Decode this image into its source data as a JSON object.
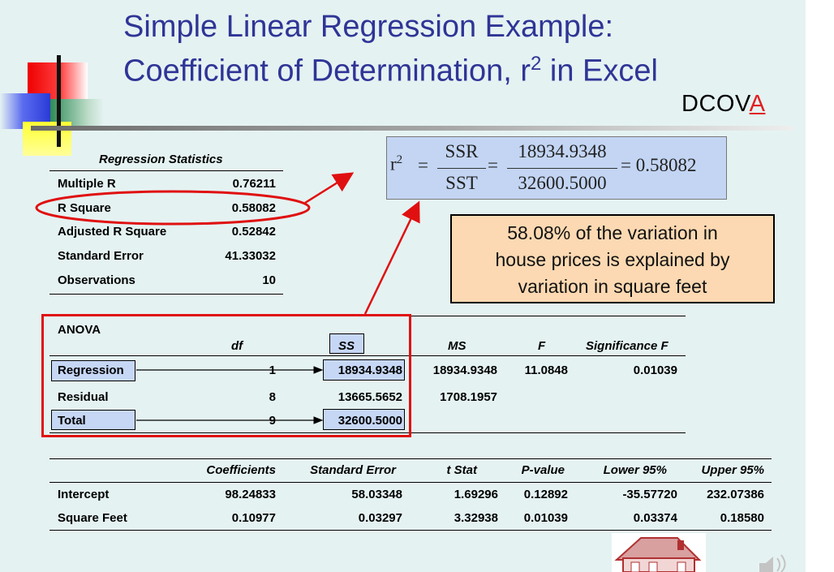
{
  "title": {
    "line1": "Simple Linear Regression Example:",
    "line2_a": "Coefficient of Determination, r",
    "line2_sup": "2",
    "line2_b": " in Excel"
  },
  "badge": {
    "prefix": "DCOV",
    "highlight": "A"
  },
  "colors": {
    "title": "#2f3596",
    "highlight_box": "#c6d7f5",
    "note_box": "#fcd9b2",
    "red": "#e01010"
  },
  "regression_statistics": {
    "header": "Regression Statistics",
    "rows": [
      {
        "label": "Multiple R",
        "value": "0.76211"
      },
      {
        "label": "R Square",
        "value": "0.58082"
      },
      {
        "label": "Adjusted R Square",
        "value": "0.52842"
      },
      {
        "label": "Standard Error",
        "value": "41.33032"
      },
      {
        "label": "Observations",
        "value": "10"
      }
    ]
  },
  "formula": {
    "lhs": "r",
    "lhs_sup": "2",
    "eq": "=",
    "num1": "SSR",
    "den1": "SST",
    "num2": "18934.9348",
    "den2": "32600.5000",
    "result": "= 0.58082"
  },
  "note": {
    "line1": "58.08% of the variation in",
    "line2": "house prices is explained by",
    "line3": "variation in square feet"
  },
  "anova": {
    "title": "ANOVA",
    "headers": [
      "df",
      "SS",
      "MS",
      "F",
      "Significance F"
    ],
    "rows": [
      {
        "label": "Regression",
        "df": "1",
        "ss": "18934.9348",
        "ms": "18934.9348",
        "f": "11.0848",
        "sig": "0.01039"
      },
      {
        "label": "Residual",
        "df": "8",
        "ss": "13665.5652",
        "ms": "1708.1957",
        "f": "",
        "sig": ""
      },
      {
        "label": "Total",
        "df": "9",
        "ss": "32600.5000",
        "ms": "",
        "f": "",
        "sig": ""
      }
    ]
  },
  "coefficients": {
    "headers": [
      "Coefficients",
      "Standard Error",
      "t Stat",
      "P-value",
      "Lower 95%",
      "Upper 95%"
    ],
    "rows": [
      {
        "label": "Intercept",
        "values": [
          "98.24833",
          "58.03348",
          "1.69296",
          "0.12892",
          "-35.57720",
          "232.07386"
        ]
      },
      {
        "label": "Square Feet",
        "values": [
          "0.10977",
          "0.03297",
          "3.32938",
          "0.01039",
          "0.03374",
          "0.18580"
        ]
      }
    ]
  },
  "icons": {
    "house": "house-icon",
    "speaker": "speaker-icon"
  }
}
